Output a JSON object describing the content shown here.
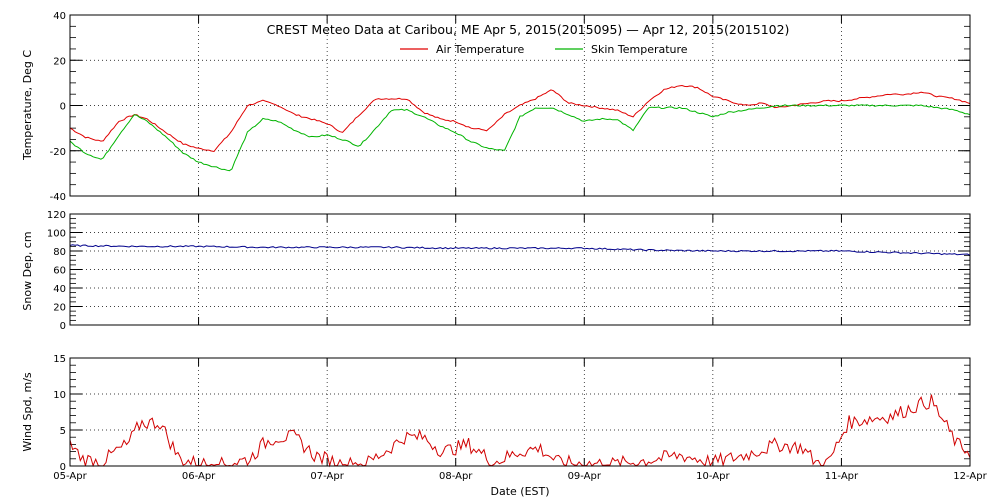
{
  "chart_data": {
    "title": "CREST Meteo Data at Caribou, ME   Apr  5, 2015(2015095) — Apr 12, 2015(2015102)",
    "xlabel": "Date (EST)",
    "x_ticks": [
      "05-Apr",
      "06-Apr",
      "07-Apr",
      "08-Apr",
      "09-Apr",
      "10-Apr",
      "11-Apr",
      "12-Apr"
    ],
    "xlim": [
      "05-Apr 00:00",
      "12-Apr 00:00"
    ],
    "colors": {
      "air": "#e00000",
      "skin": "#00b400",
      "snow": "#00008b",
      "wind": "#d00000",
      "grid": "#000000"
    },
    "panels": [
      {
        "id": "temperature",
        "type": "line",
        "ylabel": "Temperature, Deg C",
        "ylim": [
          -40,
          40
        ],
        "y_ticks": [
          -40,
          -20,
          0,
          20,
          40
        ],
        "grid": true,
        "legend": {
          "placement": "top-center",
          "entries": [
            "Air Temperature",
            "Skin Temperature"
          ]
        },
        "x_days": [
          0,
          0.12,
          0.25,
          0.38,
          0.5,
          0.6,
          0.75,
          0.88,
          1.0,
          1.12,
          1.25,
          1.38,
          1.5,
          1.62,
          1.75,
          1.88,
          2.0,
          2.12,
          2.25,
          2.38,
          2.5,
          2.62,
          2.75,
          2.88,
          3.0,
          3.12,
          3.25,
          3.38,
          3.5,
          3.62,
          3.75,
          3.88,
          4.0,
          4.12,
          4.25,
          4.38,
          4.5,
          4.62,
          4.75,
          4.88,
          5.0,
          5.12,
          5.25,
          5.38,
          5.5,
          5.62,
          5.75,
          5.88,
          6.0,
          6.12,
          6.25,
          6.38,
          6.5,
          6.62,
          6.75,
          6.88,
          7.0
        ],
        "series": [
          {
            "name": "Air Temperature",
            "color": "#e00000",
            "values": [
              -10,
              -14,
              -16,
              -7,
              -4,
              -6,
              -12,
              -17,
              -19,
              -20,
              -12,
              0,
              2,
              0,
              -4,
              -6,
              -8,
              -12,
              -4,
              3,
              3,
              3,
              -3,
              -6,
              -7,
              -10,
              -11,
              -4,
              0,
              3,
              7,
              1,
              0,
              -1,
              -2,
              -5,
              2,
              7,
              9,
              8,
              4,
              2,
              0,
              1,
              -1,
              0,
              1,
              2,
              2,
              3,
              4,
              5,
              5,
              6,
              4,
              3,
              1
            ]
          },
          {
            "name": "Skin Temperature",
            "color": "#00b400",
            "values": [
              -16,
              -21,
              -24,
              -13,
              -4,
              -7,
              -14,
              -21,
              -25,
              -27,
              -29,
              -12,
              -6,
              -7,
              -11,
              -14,
              -13,
              -15,
              -18,
              -10,
              -2,
              -2,
              -5,
              -9,
              -12,
              -16,
              -19,
              -20,
              -5,
              -1,
              -1,
              -4,
              -7,
              -6,
              -6,
              -11,
              -1,
              -1,
              -1,
              -3,
              -5,
              -3,
              -2,
              -1,
              0,
              0,
              0,
              0,
              0,
              0,
              0,
              0,
              0,
              0,
              -1,
              -2,
              -4
            ]
          }
        ]
      },
      {
        "id": "snow",
        "type": "line",
        "ylabel": "Snow Dep, cm",
        "ylim": [
          0,
          120
        ],
        "y_ticks": [
          0,
          20,
          40,
          60,
          80,
          100,
          120
        ],
        "grid": true,
        "x_days": [
          0,
          0.5,
          1.0,
          1.5,
          2.0,
          2.5,
          3.0,
          3.5,
          4.0,
          4.5,
          5.0,
          5.5,
          6.0,
          6.5,
          7.0
        ],
        "series": [
          {
            "name": "",
            "color": "#00008b",
            "values": [
              86,
              85,
              85,
              84,
              84,
              84,
              83,
              83,
              83,
              81,
              80,
              80,
              80,
              78,
              76
            ]
          }
        ]
      },
      {
        "id": "wind",
        "type": "line",
        "ylabel": "Wind Spd, m/s",
        "ylim": [
          0,
          15
        ],
        "y_ticks": [
          0,
          5,
          10,
          15
        ],
        "grid": true,
        "x_days": [
          0,
          0.1,
          0.25,
          0.35,
          0.45,
          0.55,
          0.7,
          0.85,
          1.0,
          1.2,
          1.4,
          1.5,
          1.6,
          1.75,
          1.9,
          2.1,
          2.3,
          2.45,
          2.6,
          2.75,
          2.9,
          3.1,
          3.3,
          3.5,
          3.65,
          3.8,
          4.0,
          4.25,
          4.5,
          4.75,
          5.0,
          5.25,
          5.5,
          5.7,
          5.8,
          5.9,
          6.05,
          6.2,
          6.4,
          6.6,
          6.7,
          6.8,
          6.9,
          7.0
        ],
        "series": [
          {
            "name": "",
            "color": "#d00000",
            "values": [
              3,
              1,
              0.5,
              2,
              3,
              6,
              6,
              1,
              0.3,
              0.2,
              1,
              3,
              4,
              4,
              1.5,
              0.3,
              0.3,
              2,
              4,
              4,
              2,
              3,
              0.5,
              2,
              2.5,
              0.5,
              0.3,
              0.3,
              0.8,
              1.5,
              0.5,
              1.5,
              3,
              2.5,
              0.5,
              0.5,
              6,
              6.5,
              7,
              8.5,
              9,
              6,
              3,
              2
            ]
          }
        ]
      }
    ]
  }
}
